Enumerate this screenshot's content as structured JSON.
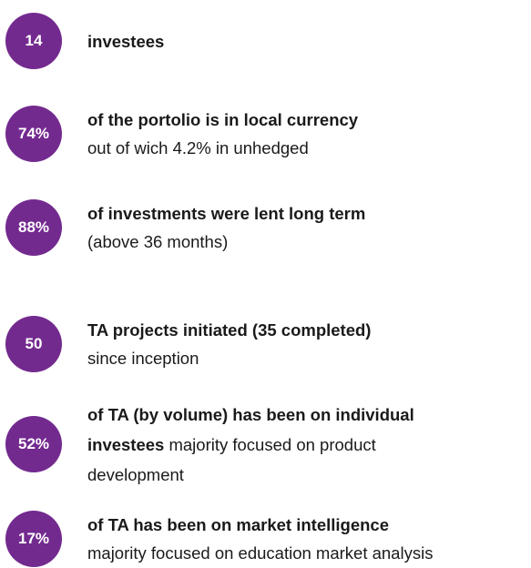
{
  "items": [
    {
      "value": "14",
      "bold": "investees",
      "text": null
    },
    {
      "value": "74%",
      "bold": "of the portolio is in local currency",
      "text": "out of wich 4.2% in unhedged"
    },
    {
      "value": "88%",
      "bold": "of investments were lent long term",
      "text": "(above 36 months)"
    },
    {
      "value": "50",
      "bold": "TA projects initiated (35 completed)",
      "text": "since inception"
    },
    {
      "value": "52%",
      "bold": "of TA (by volume) has been on individual investees",
      "text": "majority focused on product development"
    },
    {
      "value": "17%",
      "bold": "of TA has been on market intelligence",
      "text": "majority focused on education market analysis"
    }
  ]
}
